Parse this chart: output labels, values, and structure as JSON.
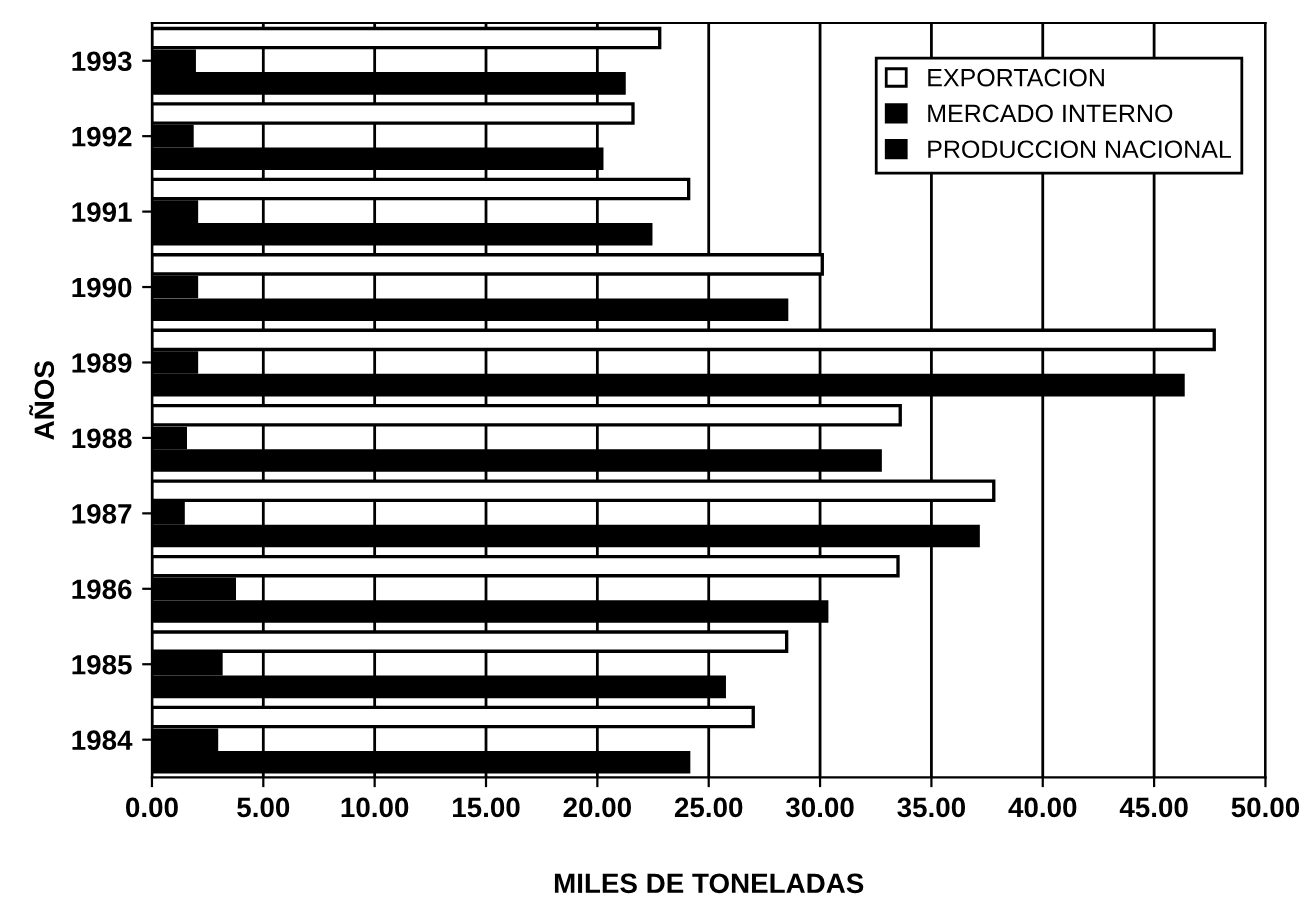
{
  "chart_data": {
    "type": "bar",
    "orientation": "horizontal",
    "xlabel": "MILES DE TONELADAS",
    "ylabel": "AÑOS",
    "categories": [
      "1993",
      "1992",
      "1991",
      "1990",
      "1989",
      "1988",
      "1987",
      "1986",
      "1985",
      "1984"
    ],
    "series": [
      {
        "name": "EXPORTACION",
        "color": "#ffffff",
        "values": [
          22.8,
          21.6,
          24.1,
          30.1,
          47.7,
          33.6,
          37.8,
          33.5,
          28.5,
          27.0
        ]
      },
      {
        "name": "MERCADO INTERNO",
        "color": "#000000",
        "values": [
          1.9,
          1.8,
          2.0,
          2.0,
          2.0,
          1.5,
          1.4,
          3.7,
          3.1,
          2.9
        ]
      },
      {
        "name": "PRODUCCION NACIONAL",
        "color": "#000000",
        "values": [
          21.2,
          20.2,
          22.4,
          28.5,
          46.3,
          32.7,
          37.1,
          30.3,
          25.7,
          24.1
        ]
      }
    ],
    "xlim": [
      0,
      50
    ],
    "xticks": [
      {
        "value": 0,
        "label": "0.00"
      },
      {
        "value": 5,
        "label": "5.00"
      },
      {
        "value": 10,
        "label": "10.00"
      },
      {
        "value": 15,
        "label": "15.00"
      },
      {
        "value": 20,
        "label": "20.00"
      },
      {
        "value": 25,
        "label": "25.00"
      },
      {
        "value": 30,
        "label": "30.00"
      },
      {
        "value": 35,
        "label": "35.00"
      },
      {
        "value": 40,
        "label": "40.00"
      },
      {
        "value": 45,
        "label": "45.00"
      },
      {
        "value": 50,
        "label": "50.00"
      }
    ],
    "grid": "x",
    "legend": "top right"
  }
}
